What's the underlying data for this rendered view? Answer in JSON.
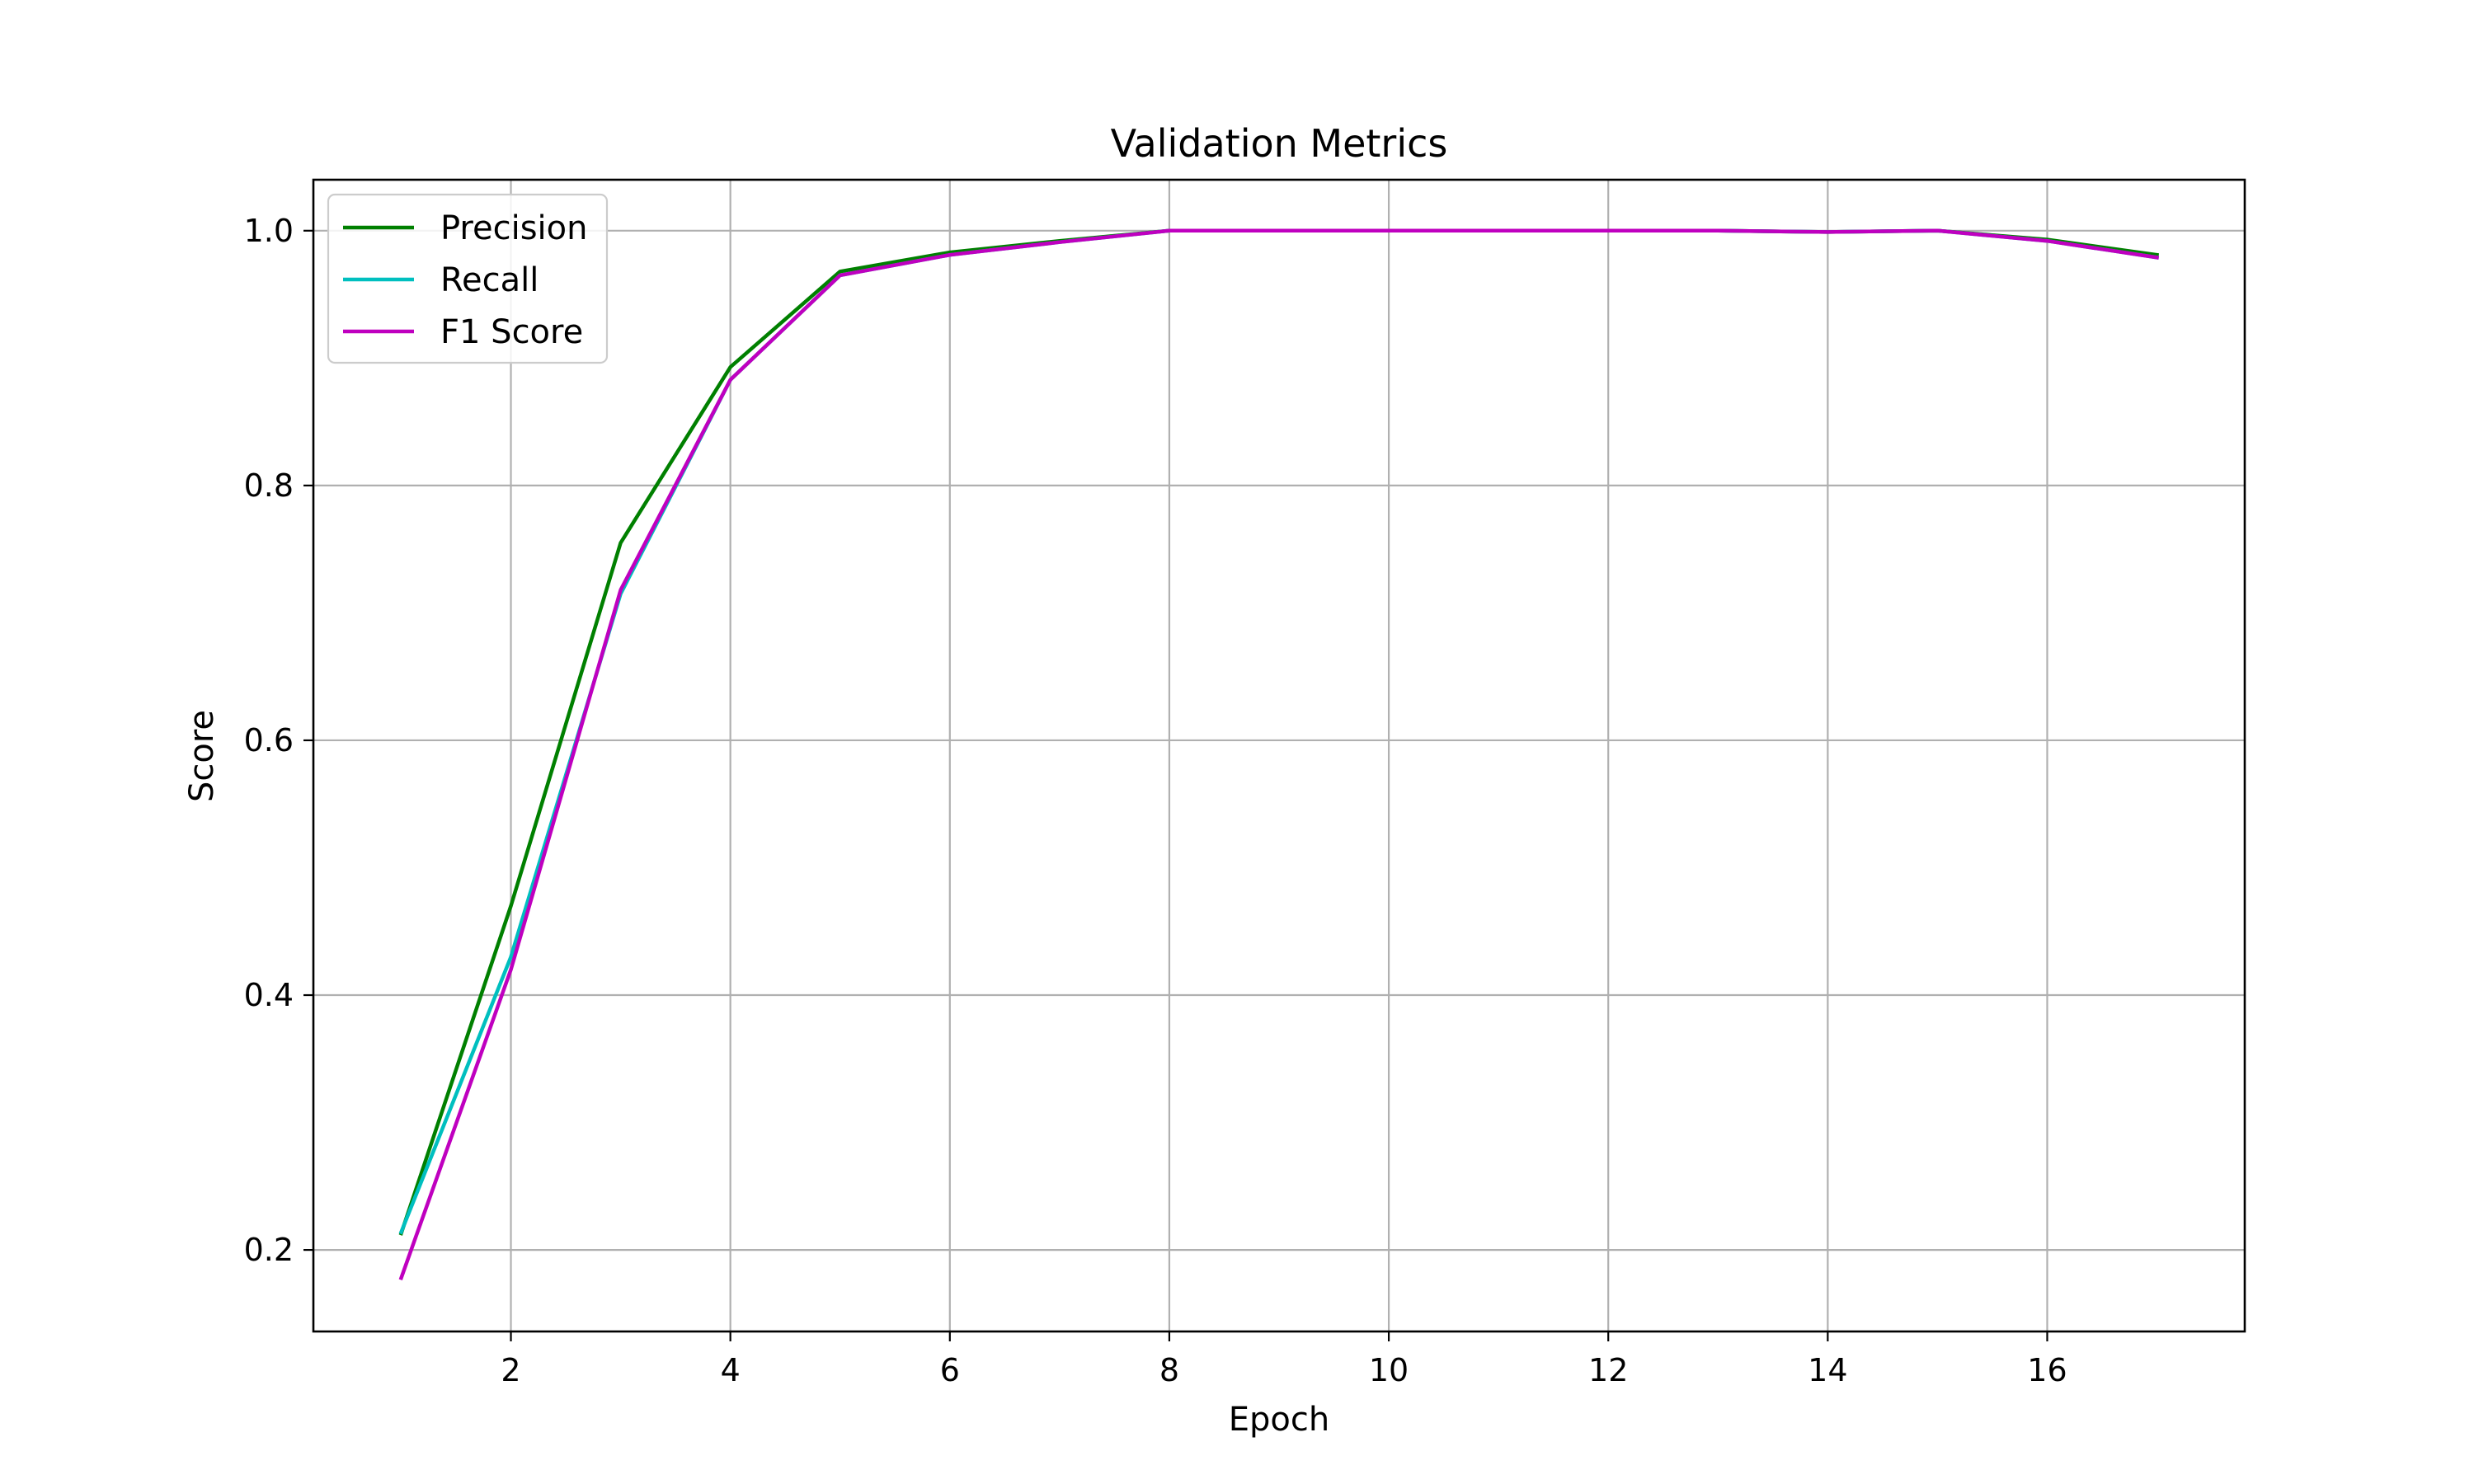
{
  "chart_data": {
    "type": "line",
    "title": "Validation Metrics",
    "xlabel": "Epoch",
    "ylabel": "Score",
    "xlim": [
      0.2,
      17.8
    ],
    "ylim": [
      0.136,
      1.04
    ],
    "xticks": [
      2,
      4,
      6,
      8,
      10,
      12,
      14,
      16
    ],
    "yticks": [
      0.2,
      0.4,
      0.6,
      0.8,
      1.0
    ],
    "xtick_labels": [
      "2",
      "4",
      "6",
      "8",
      "10",
      "12",
      "14",
      "16"
    ],
    "ytick_labels": [
      "0.2",
      "0.4",
      "0.6",
      "0.8",
      "1.0"
    ],
    "grid": true,
    "legend_position": "top-left",
    "x": [
      1,
      2,
      3,
      4,
      5,
      6,
      7,
      8,
      9,
      10,
      11,
      12,
      13,
      14,
      15,
      16,
      17
    ],
    "series": [
      {
        "name": "Precision",
        "color": "#008000",
        "values": [
          0.213,
          0.47,
          0.755,
          0.893,
          0.968,
          0.983,
          0.992,
          1.0,
          1.0,
          1.0,
          1.0,
          1.0,
          1.0,
          0.999,
          1.0,
          0.993,
          0.981
        ]
      },
      {
        "name": "Recall",
        "color": "#00bfbf",
        "values": [
          0.214,
          0.43,
          0.715,
          0.883,
          0.965,
          0.981,
          0.991,
          1.0,
          1.0,
          1.0,
          1.0,
          1.0,
          1.0,
          0.999,
          1.0,
          0.992,
          0.979
        ]
      },
      {
        "name": "F1 Score",
        "color": "#bf00bf",
        "values": [
          0.178,
          0.42,
          0.718,
          0.883,
          0.965,
          0.981,
          0.991,
          1.0,
          1.0,
          1.0,
          1.0,
          1.0,
          1.0,
          0.999,
          1.0,
          0.992,
          0.979
        ]
      }
    ]
  }
}
